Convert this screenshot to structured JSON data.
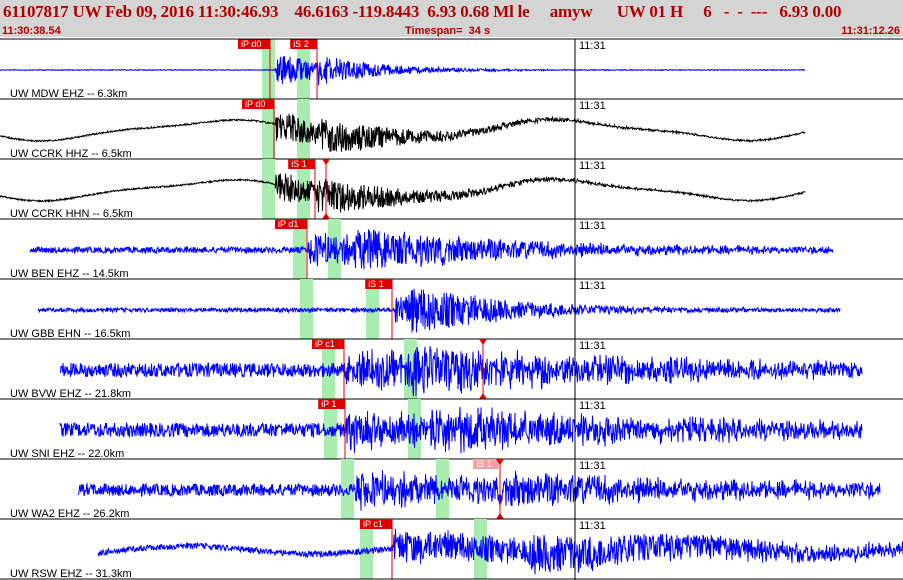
{
  "header": {
    "title": "61107817 UW Feb 09, 2016 11:30:46.93    46.6163 -119.8443  6.93 0.68 Ml le     amyw      UW 01 H     6   -  -  ---   6.93 0.00",
    "start_time": "11:30:38.54",
    "timespan": "Timespan=  34 s",
    "end_time": "11:31:12.26"
  },
  "colors": {
    "header_bg": "#d4d4d4",
    "header_text": "#b00000",
    "pick_red": "#e00000",
    "pick_faded": "#f0a0a0",
    "green_window": "#a8ecb0",
    "trace_blue": "#0000ff",
    "trace_black": "#000000"
  },
  "time_marker_label": "11:31",
  "traces": [
    {
      "label": "UW MDW EHZ -- 6.3km",
      "color": "blue",
      "style": "flat_quiet",
      "amp": 4,
      "data_start": 0,
      "data_end": 805,
      "onset": 275,
      "onset2": 318,
      "decay": 0.015,
      "greens": [
        262,
        297
      ],
      "picks": [
        {
          "label": "iP d0",
          "x": 270,
          "style": "solid"
        },
        {
          "label": "iS 2",
          "x": 317,
          "style": "solid"
        }
      ]
    },
    {
      "label": "UW CCRK HHZ -- 6.5km",
      "color": "black",
      "style": "long_period",
      "amp": 14,
      "data_start": 0,
      "data_end": 805,
      "onset": 275,
      "onset2": 320,
      "decay": 0.01,
      "greens": [
        262,
        297
      ],
      "picks": [
        {
          "label": "iP d0",
          "x": 274,
          "style": "solid"
        }
      ]
    },
    {
      "label": "UW CCRK HHN -- 6.5km",
      "color": "black",
      "style": "long_period",
      "amp": 14,
      "data_start": 0,
      "data_end": 805,
      "onset": 275,
      "onset2": 318,
      "decay": 0.01,
      "greens": [
        262,
        297
      ],
      "picks": [
        {
          "label": "iS 1",
          "x": 315,
          "style": "solid"
        },
        {
          "label": "",
          "x": 326,
          "style": "solid",
          "triangles": true
        }
      ]
    },
    {
      "label": "UW BEN EHZ -- 14.5km",
      "color": "blue",
      "style": "noise",
      "amp": 3,
      "data_start": 30,
      "data_end": 833,
      "onset": 308,
      "onset2": 355,
      "decay": 0.006,
      "greens": [
        293,
        328
      ],
      "picks": [
        {
          "label": "iP d1",
          "x": 307,
          "style": "solid"
        }
      ]
    },
    {
      "label": "UW GBB EHN -- 16.5km",
      "color": "blue",
      "style": "noise",
      "amp": 2,
      "data_start": 38,
      "data_end": 840,
      "onset": 395,
      "onset2": 410,
      "decay": 0.01,
      "greens": [
        300,
        366
      ],
      "picks": [
        {
          "label": "iS 1",
          "x": 392,
          "style": "solid"
        }
      ]
    },
    {
      "label": "UW BVW EHZ -- 21.8km",
      "color": "blue",
      "style": "busy",
      "amp": 7,
      "data_start": 60,
      "data_end": 862,
      "onset": 345,
      "onset2": 410,
      "decay": 0.004,
      "greens": [
        322,
        404
      ],
      "picks": [
        {
          "label": "iP c1",
          "x": 344,
          "style": "solid"
        },
        {
          "label": "",
          "x": 483,
          "style": "solid",
          "triangles": true
        }
      ]
    },
    {
      "label": "UW SNI EHZ -- 22.0km",
      "color": "blue",
      "style": "busy",
      "amp": 7,
      "data_start": 60,
      "data_end": 862,
      "onset": 346,
      "onset2": 430,
      "decay": 0.004,
      "greens": [
        324,
        408
      ],
      "picks": [
        {
          "label": "iP 1",
          "x": 345,
          "style": "solid"
        }
      ]
    },
    {
      "label": "UW WA2 EHZ -- 26.2km",
      "color": "blue",
      "style": "busy",
      "amp": 6,
      "data_start": 78,
      "data_end": 880,
      "onset": 355,
      "onset2": 502,
      "decay": 0.004,
      "greens": [
        341,
        436
      ],
      "picks": [
        {
          "label": "iS 1",
          "x": 500,
          "style": "faded",
          "triangles": true
        }
      ]
    },
    {
      "label": "UW RSW EHZ -- 31.3km",
      "color": "blue",
      "style": "noise_wavy",
      "amp": 3,
      "data_start": 98,
      "data_end": 903,
      "onset": 393,
      "onset2": 530,
      "decay": 0.003,
      "greens": [
        360,
        474
      ],
      "picks": [
        {
          "label": "iP c1",
          "x": 392,
          "style": "solid"
        }
      ]
    }
  ]
}
